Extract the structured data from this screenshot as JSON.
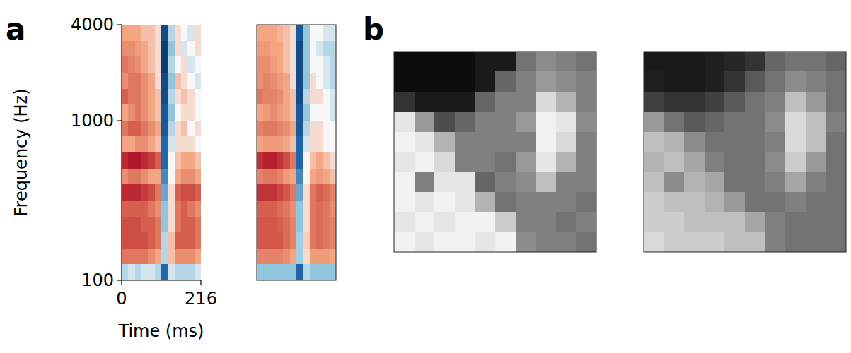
{
  "chart_data": [
    {
      "type": "heatmap",
      "panel_label": "a",
      "x_label": "Time (ms)",
      "y_label": "Frequency (Hz)",
      "xlim": [
        0,
        216
      ],
      "xticks": [
        0,
        216
      ],
      "ylim": [
        100,
        4000
      ],
      "yticks": [
        100,
        1000,
        4000
      ],
      "log": "y",
      "zlim": [
        -1,
        1
      ],
      "maps": [
        [
          [
            0.3,
            0.3,
            0.3,
            0.2,
            0.2,
            0.1,
            -0.8,
            -0.2,
            0.1,
            0.0,
            -0.1,
            0.1
          ],
          [
            0.4,
            0.4,
            0.35,
            0.3,
            0.2,
            0.1,
            -0.9,
            -0.3,
            0.1,
            -0.1,
            0.0,
            0.1
          ],
          [
            0.5,
            0.45,
            0.4,
            0.3,
            0.2,
            0.1,
            -0.9,
            -0.2,
            0.0,
            0.1,
            -0.1,
            0.0
          ],
          [
            0.4,
            0.5,
            0.5,
            0.4,
            0.3,
            0.1,
            -0.8,
            -0.3,
            0.2,
            0.1,
            0.0,
            -0.1
          ],
          [
            0.6,
            0.5,
            0.5,
            0.4,
            0.3,
            0.2,
            -0.8,
            -0.2,
            0.1,
            0.2,
            0.1,
            0.0
          ],
          [
            0.3,
            0.4,
            0.5,
            0.4,
            0.3,
            0.2,
            -0.7,
            -0.3,
            0.0,
            0.1,
            0.1,
            0.0
          ],
          [
            0.5,
            0.6,
            0.6,
            0.5,
            0.4,
            0.3,
            -0.7,
            -0.2,
            0.1,
            0.2,
            0.0,
            0.1
          ],
          [
            0.3,
            0.3,
            0.4,
            0.4,
            0.3,
            0.2,
            -0.6,
            -0.1,
            0.1,
            0.1,
            0.1,
            0.0
          ],
          [
            0.9,
            1.0,
            1.0,
            0.9,
            0.8,
            0.6,
            -0.6,
            0.0,
            0.2,
            0.3,
            0.3,
            0.2
          ],
          [
            0.4,
            0.5,
            0.5,
            0.4,
            0.3,
            0.3,
            -0.5,
            0.0,
            0.3,
            0.4,
            0.4,
            0.3
          ],
          [
            0.9,
            0.9,
            0.9,
            0.8,
            0.7,
            0.5,
            -0.4,
            0.1,
            0.6,
            0.7,
            0.7,
            0.6
          ],
          [
            0.6,
            0.6,
            0.6,
            0.6,
            0.5,
            0.4,
            -0.3,
            0.1,
            0.5,
            0.6,
            0.5,
            0.4
          ],
          [
            0.7,
            0.7,
            0.7,
            0.6,
            0.6,
            0.5,
            -0.3,
            0.1,
            0.5,
            0.6,
            0.6,
            0.5
          ],
          [
            0.7,
            0.7,
            0.7,
            0.7,
            0.6,
            0.5,
            -0.2,
            0.2,
            0.6,
            0.6,
            0.6,
            0.5
          ],
          [
            0.5,
            0.5,
            0.5,
            0.5,
            0.4,
            0.3,
            -0.2,
            0.2,
            0.4,
            0.4,
            0.4,
            0.3
          ],
          [
            -0.2,
            -0.1,
            -0.2,
            -0.1,
            -0.1,
            -0.2,
            -0.6,
            -0.1,
            -0.2,
            -0.2,
            -0.2,
            -0.1
          ]
        ],
        [
          [
            0.3,
            0.3,
            0.3,
            0.25,
            0.2,
            0.1,
            -0.7,
            -0.3,
            0.0,
            0.0,
            -0.1,
            -0.1
          ],
          [
            0.35,
            0.35,
            0.3,
            0.3,
            0.2,
            0.1,
            -0.8,
            -0.3,
            0.0,
            -0.1,
            -0.2,
            -0.2
          ],
          [
            0.4,
            0.4,
            0.35,
            0.3,
            0.2,
            0.1,
            -0.8,
            -0.3,
            0.0,
            0.0,
            -0.1,
            -0.2
          ],
          [
            0.4,
            0.45,
            0.4,
            0.35,
            0.3,
            0.1,
            -0.8,
            -0.3,
            0.1,
            0.0,
            -0.1,
            -0.2
          ],
          [
            0.5,
            0.45,
            0.45,
            0.4,
            0.3,
            0.2,
            -0.8,
            -0.2,
            0.1,
            0.1,
            0.0,
            -0.1
          ],
          [
            0.3,
            0.35,
            0.4,
            0.35,
            0.3,
            0.2,
            -0.7,
            -0.3,
            0.0,
            0.0,
            0.0,
            -0.1
          ],
          [
            0.45,
            0.5,
            0.5,
            0.45,
            0.4,
            0.3,
            -0.7,
            -0.2,
            0.1,
            0.1,
            0.0,
            0.0
          ],
          [
            0.3,
            0.35,
            0.35,
            0.35,
            0.3,
            0.2,
            -0.6,
            -0.1,
            0.1,
            0.1,
            0.0,
            0.0
          ],
          [
            0.85,
            0.95,
            0.95,
            0.85,
            0.7,
            0.5,
            -0.6,
            0.0,
            0.2,
            0.3,
            0.2,
            0.1
          ],
          [
            0.45,
            0.5,
            0.5,
            0.45,
            0.35,
            0.3,
            -0.5,
            0.0,
            0.3,
            0.35,
            0.3,
            0.2
          ],
          [
            0.85,
            0.85,
            0.85,
            0.75,
            0.65,
            0.5,
            -0.4,
            0.1,
            0.5,
            0.6,
            0.55,
            0.45
          ],
          [
            0.6,
            0.6,
            0.6,
            0.55,
            0.5,
            0.4,
            -0.3,
            0.1,
            0.5,
            0.55,
            0.5,
            0.4
          ],
          [
            0.65,
            0.65,
            0.65,
            0.6,
            0.55,
            0.45,
            -0.3,
            0.1,
            0.5,
            0.55,
            0.5,
            0.45
          ],
          [
            0.65,
            0.65,
            0.65,
            0.65,
            0.55,
            0.45,
            -0.25,
            0.15,
            0.5,
            0.55,
            0.5,
            0.45
          ],
          [
            0.45,
            0.45,
            0.45,
            0.45,
            0.4,
            0.3,
            -0.25,
            0.1,
            0.35,
            0.35,
            0.35,
            0.3
          ],
          [
            -0.3,
            -0.3,
            -0.3,
            -0.3,
            -0.3,
            -0.3,
            -0.6,
            -0.2,
            -0.3,
            -0.3,
            -0.3,
            -0.3
          ]
        ]
      ]
    },
    {
      "type": "image",
      "panel_label": "b",
      "zlim": [
        0,
        1
      ],
      "maps": [
        [
          [
            0.05,
            0.05,
            0.05,
            0.05,
            0.1,
            0.1,
            0.45,
            0.55,
            0.5,
            0.45
          ],
          [
            0.05,
            0.05,
            0.05,
            0.05,
            0.1,
            0.4,
            0.5,
            0.6,
            0.55,
            0.5
          ],
          [
            0.2,
            0.1,
            0.1,
            0.1,
            0.4,
            0.5,
            0.5,
            0.85,
            0.7,
            0.5
          ],
          [
            0.9,
            0.6,
            0.3,
            0.4,
            0.5,
            0.5,
            0.6,
            0.95,
            0.9,
            0.55
          ],
          [
            0.95,
            0.9,
            0.7,
            0.5,
            0.5,
            0.5,
            0.5,
            0.95,
            0.85,
            0.5
          ],
          [
            0.9,
            0.95,
            0.85,
            0.5,
            0.5,
            0.45,
            0.6,
            0.9,
            0.7,
            0.5
          ],
          [
            0.95,
            0.5,
            0.9,
            0.9,
            0.4,
            0.5,
            0.55,
            0.75,
            0.5,
            0.5
          ],
          [
            0.95,
            0.9,
            0.95,
            0.9,
            0.7,
            0.45,
            0.5,
            0.5,
            0.5,
            0.45
          ],
          [
            0.9,
            0.95,
            0.9,
            0.95,
            0.95,
            0.8,
            0.5,
            0.5,
            0.45,
            0.5
          ],
          [
            0.95,
            0.9,
            0.95,
            0.95,
            0.9,
            0.95,
            0.55,
            0.5,
            0.5,
            0.45
          ]
        ],
        [
          [
            0.1,
            0.1,
            0.1,
            0.12,
            0.15,
            0.2,
            0.4,
            0.45,
            0.45,
            0.4
          ],
          [
            0.12,
            0.1,
            0.1,
            0.12,
            0.2,
            0.35,
            0.45,
            0.55,
            0.5,
            0.45
          ],
          [
            0.25,
            0.2,
            0.2,
            0.25,
            0.35,
            0.45,
            0.5,
            0.75,
            0.6,
            0.45
          ],
          [
            0.6,
            0.45,
            0.35,
            0.4,
            0.45,
            0.45,
            0.55,
            0.85,
            0.75,
            0.5
          ],
          [
            0.75,
            0.7,
            0.55,
            0.45,
            0.45,
            0.45,
            0.5,
            0.85,
            0.75,
            0.45
          ],
          [
            0.7,
            0.75,
            0.65,
            0.5,
            0.45,
            0.45,
            0.55,
            0.8,
            0.6,
            0.45
          ],
          [
            0.75,
            0.55,
            0.7,
            0.65,
            0.45,
            0.45,
            0.5,
            0.65,
            0.5,
            0.45
          ],
          [
            0.8,
            0.75,
            0.75,
            0.7,
            0.6,
            0.45,
            0.45,
            0.5,
            0.45,
            0.45
          ],
          [
            0.8,
            0.8,
            0.75,
            0.75,
            0.75,
            0.65,
            0.5,
            0.45,
            0.45,
            0.45
          ],
          [
            0.85,
            0.8,
            0.8,
            0.8,
            0.75,
            0.75,
            0.5,
            0.45,
            0.45,
            0.45
          ]
        ]
      ]
    }
  ]
}
